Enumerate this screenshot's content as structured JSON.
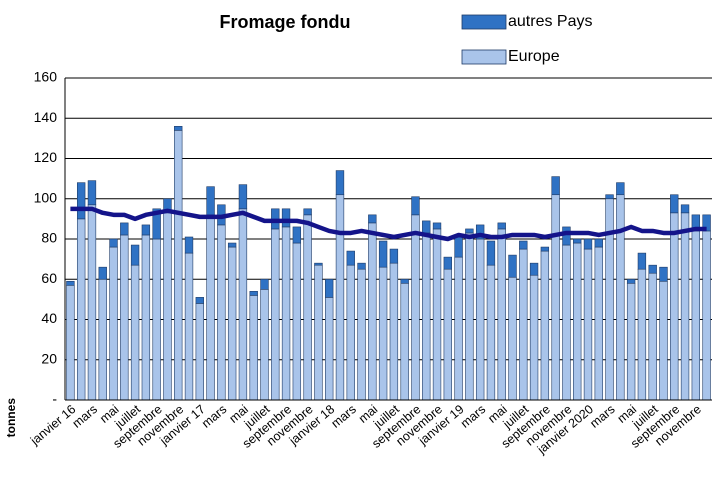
{
  "chart_data": {
    "type": "stacked_bar_line",
    "title": "Fromage fondu",
    "y_label": "tonnes",
    "categories": [
      "janvier 16",
      null,
      "mars",
      null,
      "mai",
      null,
      "juillet",
      null,
      "septembre",
      null,
      "novembre",
      null,
      "janvier 17",
      null,
      "mars",
      null,
      "mai",
      null,
      "juillet",
      null,
      "septembre",
      null,
      "novembre",
      null,
      "janvier 18",
      null,
      "mars",
      null,
      "mai",
      null,
      "juillet",
      null,
      "septembre",
      null,
      "novembre",
      null,
      "janvier 19",
      null,
      "mars",
      null,
      "mai",
      null,
      "juillet",
      null,
      "septembre",
      null,
      "novembre",
      null,
      "janvier 2020",
      null,
      "mars",
      null,
      "mai",
      null,
      "juillet",
      null,
      "septembre",
      null,
      "novembre",
      null
    ],
    "series": [
      {
        "name": "Europe",
        "color": "#a9c4ea",
        "values": [
          57,
          90,
          97,
          60,
          76,
          82,
          67,
          82,
          80,
          93,
          134,
          73,
          48,
          92,
          87,
          76,
          95,
          52,
          55,
          85,
          86,
          78,
          92,
          67,
          51,
          102,
          67,
          65,
          88,
          66,
          68,
          58,
          92,
          83,
          85,
          65,
          71,
          83,
          80,
          67,
          85,
          61,
          75,
          62,
          74,
          102,
          77,
          78,
          75,
          76,
          100,
          102,
          58,
          65,
          63,
          59,
          93,
          93,
          84,
          84
        ]
      },
      {
        "name": "autres Pays",
        "color": "#2f72c4",
        "values": [
          2,
          18,
          12,
          6,
          4,
          6,
          10,
          5,
          15,
          7,
          2,
          8,
          3,
          14,
          10,
          2,
          12,
          2,
          5,
          10,
          9,
          8,
          3,
          1,
          9,
          12,
          7,
          3,
          4,
          13,
          7,
          2,
          9,
          6,
          3,
          6,
          11,
          2,
          7,
          12,
          3,
          11,
          4,
          6,
          2,
          9,
          9,
          2,
          5,
          4,
          2,
          6,
          2,
          8,
          4,
          7,
          9,
          4,
          8,
          8
        ]
      }
    ],
    "line": {
      "color": "#14148a",
      "values": [
        95,
        95,
        95,
        93,
        92,
        92,
        90,
        92,
        93,
        94,
        93,
        92,
        91,
        91,
        91,
        92,
        93,
        91,
        89,
        89,
        89,
        89,
        88,
        86,
        84,
        83,
        83,
        84,
        83,
        82,
        81,
        82,
        83,
        82,
        81,
        80,
        82,
        81,
        82,
        81,
        81,
        82,
        82,
        82,
        81,
        82,
        83,
        83,
        83,
        82,
        83,
        84,
        86,
        84,
        84,
        83,
        83,
        84,
        85,
        85
      ]
    },
    "ylim": [
      0,
      160
    ],
    "yticks": [
      {
        "value": 0,
        "label": "-"
      },
      20,
      40,
      60,
      80,
      100,
      120,
      140,
      160
    ],
    "grid": true
  }
}
